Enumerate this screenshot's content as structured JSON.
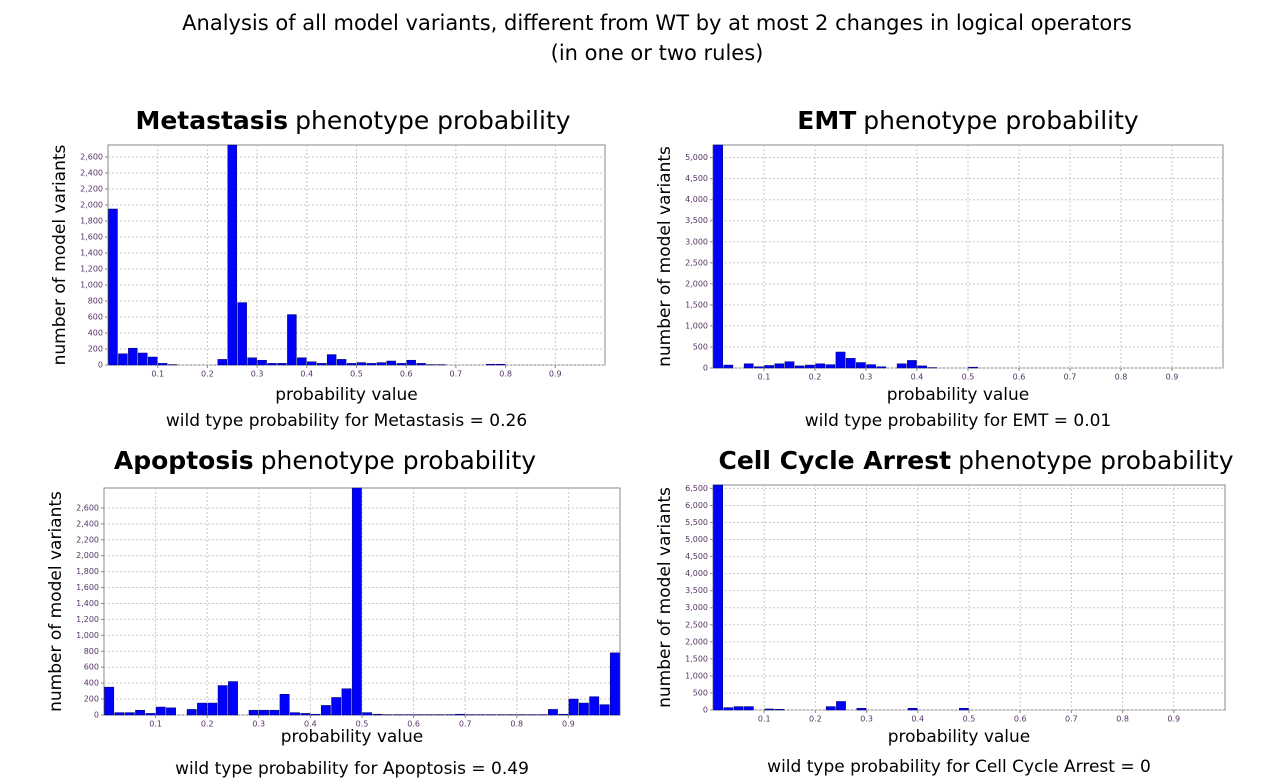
{
  "header": {
    "title": "Analysis of all model variants, different from WT by at most 2 changes in logical operators",
    "subtitle": "(in one or two rules)"
  },
  "chart_data": [
    {
      "type": "histogram",
      "title": {
        "bold": "Metastasis",
        "rest": "phenotype probability"
      },
      "ylabel": "number of model variants",
      "xlabel": "probability value",
      "annotation": "wild type probability for Metastasis = 0.26",
      "color": "#0000ff",
      "grid": true,
      "bins": [
        0,
        0.02,
        0.04,
        0.06,
        0.08,
        0.1,
        0.12,
        0.14,
        0.16,
        0.18,
        0.2,
        0.22,
        0.24,
        0.26,
        0.28,
        0.3,
        0.32,
        0.34,
        0.36,
        0.38,
        0.4,
        0.42,
        0.44,
        0.46,
        0.48,
        0.5,
        0.52,
        0.54,
        0.56,
        0.58,
        0.6,
        0.62,
        0.64,
        0.66,
        0.68,
        0.7,
        0.72,
        0.74,
        0.76,
        0.78,
        0.8,
        0.82,
        0.84,
        0.86,
        0.88,
        0.9,
        0.92,
        0.94,
        0.96,
        0.98,
        1
      ],
      "counts": [
        1950,
        140,
        210,
        150,
        100,
        20,
        5,
        0,
        0,
        0,
        0,
        70,
        2750,
        780,
        90,
        60,
        20,
        20,
        630,
        90,
        40,
        20,
        130,
        70,
        20,
        30,
        20,
        30,
        50,
        20,
        60,
        20,
        5,
        5,
        0,
        0,
        0,
        0,
        10,
        10,
        0,
        0,
        0,
        0,
        0,
        0,
        0,
        0,
        0,
        0
      ],
      "xlim": [
        0,
        1
      ],
      "xticks": [
        0.1,
        0.2,
        0.3,
        0.4,
        0.5,
        0.6,
        0.7,
        0.8,
        0.9
      ],
      "ylim": [
        0,
        2750
      ],
      "yticks": [
        0,
        200,
        400,
        600,
        800,
        {
          "value": 1000,
          "label": "1,000"
        },
        {
          "value": 1200,
          "label": "1,200"
        },
        {
          "value": 1400,
          "label": "1,400"
        },
        {
          "value": 1600,
          "label": "1,600"
        },
        {
          "value": 1800,
          "label": "1,800"
        },
        {
          "value": 2000,
          "label": "2,000"
        },
        {
          "value": 2200,
          "label": "2,200"
        },
        {
          "value": 2400,
          "label": "2,400"
        },
        {
          "value": 2600,
          "label": "2,600"
        }
      ]
    },
    {
      "type": "histogram",
      "title": {
        "bold": "EMT",
        "rest": "phenotype probability"
      },
      "ylabel": "number of model variants",
      "xlabel": "probability value",
      "annotation": "wild type probability for EMT = 0.01",
      "color": "#0000ff",
      "grid": true,
      "bins": [
        0,
        0.02,
        0.04,
        0.06,
        0.08,
        0.1,
        0.12,
        0.14,
        0.16,
        0.18,
        0.2,
        0.22,
        0.24,
        0.26,
        0.28,
        0.3,
        0.32,
        0.34,
        0.36,
        0.38,
        0.4,
        0.42,
        0.44,
        0.46,
        0.48,
        0.5,
        0.52,
        0.54,
        0.56,
        0.58,
        0.6,
        0.62,
        0.64,
        0.66,
        0.68,
        0.7,
        0.72,
        0.74,
        0.76,
        0.78,
        0.8,
        0.82,
        0.84,
        0.86,
        0.88,
        0.9,
        0.92,
        0.94,
        0.96,
        0.98,
        1
      ],
      "counts": [
        5300,
        70,
        0,
        100,
        30,
        60,
        100,
        150,
        50,
        70,
        100,
        80,
        380,
        230,
        130,
        80,
        30,
        0,
        100,
        180,
        50,
        10,
        0,
        0,
        0,
        20,
        0,
        0,
        0,
        0,
        0,
        0,
        0,
        0,
        0,
        0,
        0,
        0,
        0,
        0,
        0,
        0,
        0,
        0,
        0,
        0,
        0,
        0,
        0,
        0
      ],
      "xlim": [
        0,
        1
      ],
      "xticks": [
        0.1,
        0.2,
        0.3,
        0.4,
        0.5,
        0.6,
        0.7,
        0.8,
        0.9
      ],
      "ylim": [
        0,
        5300
      ],
      "yticks": [
        0,
        500,
        {
          "value": 1000,
          "label": "1,000"
        },
        {
          "value": 1500,
          "label": "1,500"
        },
        {
          "value": 2000,
          "label": "2,000"
        },
        {
          "value": 2500,
          "label": "2,500"
        },
        {
          "value": 3000,
          "label": "3,000"
        },
        {
          "value": 3500,
          "label": "3,500"
        },
        {
          "value": 4000,
          "label": "4,000"
        },
        {
          "value": 4500,
          "label": "4,500"
        },
        {
          "value": 5000,
          "label": "5,000"
        }
      ]
    },
    {
      "type": "histogram",
      "title": {
        "bold": "Apoptosis",
        "rest": "phenotype probability"
      },
      "ylabel": "number of model variants",
      "xlabel": "probability value",
      "annotation": "wild type probability for Apoptosis = 0.49",
      "color": "#0000ff",
      "grid": true,
      "bins": [
        0,
        0.02,
        0.04,
        0.06,
        0.08,
        0.1,
        0.12,
        0.14,
        0.16,
        0.18,
        0.2,
        0.22,
        0.24,
        0.26,
        0.28,
        0.3,
        0.32,
        0.34,
        0.36,
        0.38,
        0.4,
        0.42,
        0.44,
        0.46,
        0.48,
        0.5,
        0.52,
        0.54,
        0.56,
        0.58,
        0.6,
        0.62,
        0.64,
        0.66,
        0.68,
        0.7,
        0.72,
        0.74,
        0.76,
        0.78,
        0.8,
        0.82,
        0.84,
        0.86,
        0.88,
        0.9,
        0.92,
        0.94,
        0.96,
        0.98,
        1
      ],
      "counts": [
        350,
        30,
        30,
        60,
        20,
        100,
        90,
        0,
        70,
        150,
        150,
        370,
        420,
        0,
        60,
        60,
        60,
        260,
        30,
        20,
        10,
        120,
        220,
        330,
        2850,
        30,
        10,
        5,
        5,
        5,
        5,
        5,
        5,
        5,
        10,
        5,
        5,
        5,
        5,
        5,
        5,
        5,
        5,
        70,
        10,
        200,
        150,
        230,
        130,
        780
      ],
      "xlim": [
        0,
        1
      ],
      "xticks": [
        0.1,
        0.2,
        0.3,
        0.4,
        0.5,
        0.6,
        0.7,
        0.8,
        0.9
      ],
      "ylim": [
        0,
        2850
      ],
      "yticks": [
        0,
        200,
        400,
        600,
        800,
        {
          "value": 1000,
          "label": "1,000"
        },
        {
          "value": 1200,
          "label": "1,200"
        },
        {
          "value": 1400,
          "label": "1,400"
        },
        {
          "value": 1600,
          "label": "1,600"
        },
        {
          "value": 1800,
          "label": "1,800"
        },
        {
          "value": 2000,
          "label": "2,000"
        },
        {
          "value": 2200,
          "label": "2,200"
        },
        {
          "value": 2400,
          "label": "2,400"
        },
        {
          "value": 2600,
          "label": "2,600"
        }
      ]
    },
    {
      "type": "histogram",
      "title": {
        "bold": "Cell Cycle Arrest",
        "rest": "phenotype probability"
      },
      "ylabel": "number of model variants",
      "xlabel": "probability value",
      "annotation": "wild type probability for Cell Cycle Arrest = 0",
      "color": "#0000ff",
      "grid": true,
      "bins": [
        0,
        0.02,
        0.04,
        0.06,
        0.08,
        0.1,
        0.12,
        0.14,
        0.16,
        0.18,
        0.2,
        0.22,
        0.24,
        0.26,
        0.28,
        0.3,
        0.32,
        0.34,
        0.36,
        0.38,
        0.4,
        0.42,
        0.44,
        0.46,
        0.48,
        0.5,
        0.52,
        0.54,
        0.56,
        0.58,
        0.6,
        0.62,
        0.64,
        0.66,
        0.68,
        0.7,
        0.72,
        0.74,
        0.76,
        0.78,
        0.8,
        0.82,
        0.84,
        0.86,
        0.88,
        0.9,
        0.92,
        0.94,
        0.96,
        0.98,
        1
      ],
      "counts": [
        6600,
        70,
        100,
        100,
        0,
        30,
        20,
        0,
        0,
        0,
        0,
        100,
        250,
        0,
        50,
        0,
        0,
        0,
        0,
        50,
        0,
        0,
        0,
        0,
        50,
        0,
        0,
        0,
        0,
        0,
        0,
        0,
        0,
        0,
        0,
        0,
        0,
        0,
        0,
        0,
        0,
        0,
        0,
        0,
        0,
        0,
        0,
        0,
        0,
        0
      ],
      "xlim": [
        0,
        1
      ],
      "xticks": [
        0.1,
        0.2,
        0.3,
        0.4,
        0.5,
        0.6,
        0.7,
        0.8,
        0.9
      ],
      "ylim": [
        0,
        6600
      ],
      "yticks": [
        0,
        500,
        {
          "value": 1000,
          "label": "1,000"
        },
        {
          "value": 1500,
          "label": "1,500"
        },
        {
          "value": 2000,
          "label": "2,000"
        },
        {
          "value": 2500,
          "label": "2,500"
        },
        {
          "value": 3000,
          "label": "3,000"
        },
        {
          "value": 3500,
          "label": "3,500"
        },
        {
          "value": 4000,
          "label": "4,000"
        },
        {
          "value": 4500,
          "label": "4,500"
        },
        {
          "value": 5000,
          "label": "5,000"
        },
        {
          "value": 5500,
          "label": "5,500"
        },
        {
          "value": 6000,
          "label": "6,000"
        },
        {
          "value": 6500,
          "label": "6,500"
        }
      ]
    }
  ]
}
